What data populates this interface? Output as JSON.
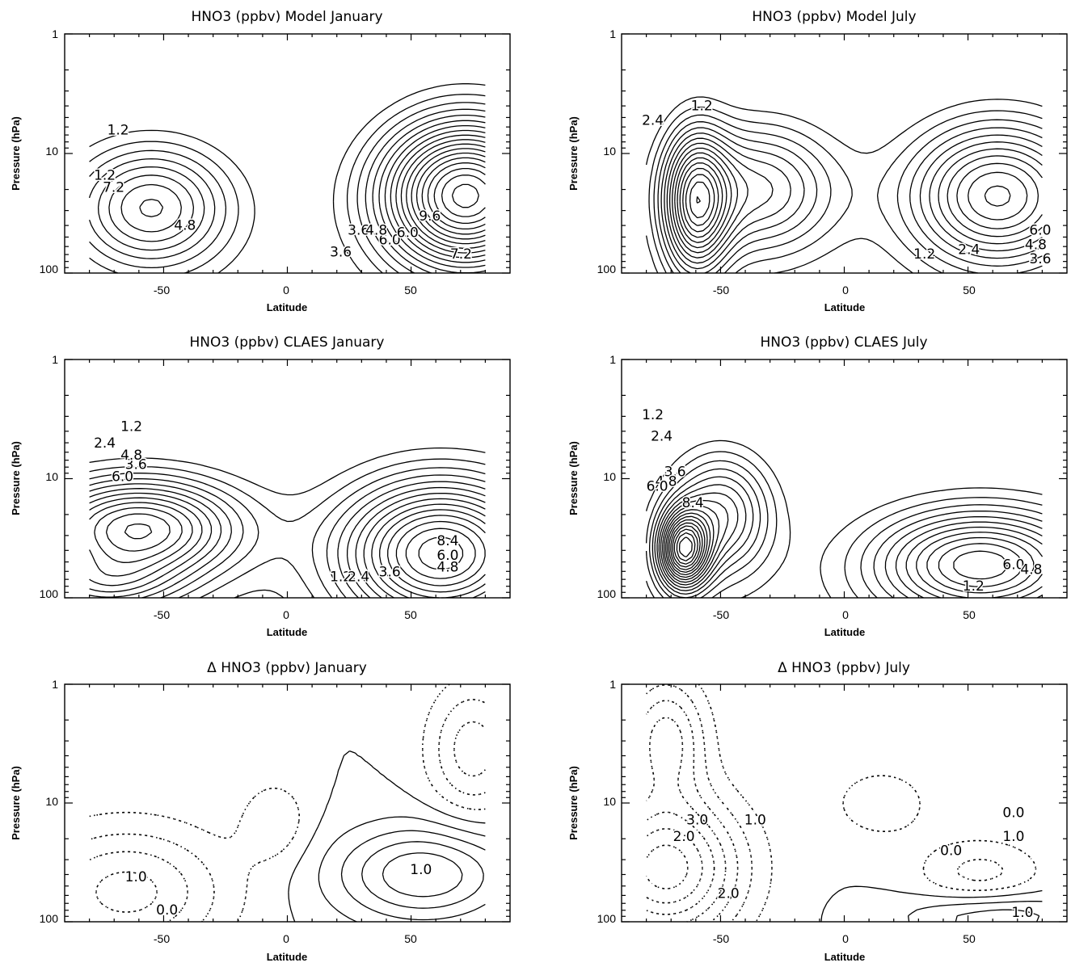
{
  "chart_data": [
    {
      "type": "contour",
      "title": "HNO3 (ppbv)   Model    January",
      "xlabel": "Latitude",
      "ylabel": "Pressure (hPa)",
      "x_ticks": [
        "-50",
        "0",
        "50"
      ],
      "y_ticks": [
        "1",
        "10",
        "100"
      ],
      "xlim": [
        -90,
        90
      ],
      "ylim": [
        100,
        1
      ],
      "y_scale": "log",
      "contour_labels": [
        "1.2",
        "4.8",
        "7.2",
        "3.6",
        "6.0",
        "9.6",
        "1.2",
        "3.6",
        "4.8",
        "6.0",
        "7.2"
      ]
    },
    {
      "type": "contour",
      "title": "HNO3 (ppbv)   Model     July",
      "xlabel": "Latitude",
      "ylabel": "Pressure (hPa)",
      "x_ticks": [
        "-50",
        "0",
        "50"
      ],
      "y_ticks": [
        "1",
        "10",
        "100"
      ],
      "xlim": [
        -90,
        90
      ],
      "ylim": [
        100,
        1
      ],
      "y_scale": "log",
      "contour_labels": [
        "1.2",
        "2.4",
        "6.0",
        "4.8",
        "3.6",
        "1.2",
        "2.4"
      ]
    },
    {
      "type": "contour",
      "title": "HNO3 (ppbv)   CLAES January",
      "xlabel": "Latitude",
      "ylabel": "Pressure (hPa)",
      "x_ticks": [
        "-50",
        "0",
        "50"
      ],
      "y_ticks": [
        "1",
        "10",
        "100"
      ],
      "xlim": [
        -90,
        90
      ],
      "ylim": [
        100,
        1
      ],
      "y_scale": "log",
      "contour_labels": [
        "1.2",
        "2.4",
        "3.6",
        "4.8",
        "6.0",
        "1.2",
        "2.4",
        "3.6",
        "8.4",
        "6.0",
        "4.8"
      ]
    },
    {
      "type": "contour",
      "title": "HNO3 (ppbv)   CLAES July",
      "xlabel": "Latitude",
      "ylabel": "Pressure (hPa)",
      "x_ticks": [
        "-50",
        "0",
        "50"
      ],
      "y_ticks": [
        "1",
        "10",
        "100"
      ],
      "xlim": [
        -90,
        90
      ],
      "ylim": [
        100,
        1
      ],
      "y_scale": "log",
      "contour_labels": [
        "1.2",
        "2.4",
        "3.6",
        "4.8",
        "6.0",
        "8.4",
        "1.2",
        "6.0",
        "4.8"
      ]
    },
    {
      "type": "contour",
      "title": "Δ HNO3 (ppbv) January",
      "xlabel": "Latitude",
      "ylabel": "Pressure (hPa)",
      "x_ticks": [
        "-50",
        "0",
        "50"
      ],
      "y_ticks": [
        "1",
        "10",
        "100"
      ],
      "xlim": [
        -90,
        90
      ],
      "ylim": [
        100,
        1
      ],
      "y_scale": "log",
      "contour_labels": [
        "1.0",
        "0.0",
        "1.0"
      ]
    },
    {
      "type": "contour",
      "title": "Δ HNO3 (ppbv) July",
      "xlabel": "Latitude",
      "ylabel": "Pressure (hPa)",
      "x_ticks": [
        "-50",
        "0",
        "50"
      ],
      "y_ticks": [
        "1",
        "10",
        "100"
      ],
      "xlim": [
        -90,
        90
      ],
      "ylim": [
        100,
        1
      ],
      "y_scale": "log",
      "contour_labels": [
        "3.0",
        "2.0",
        "1.0",
        "0.0",
        "1.0",
        "0.0",
        "2.0",
        "1.0"
      ]
    }
  ],
  "style": {
    "line_color": "#000000",
    "background": "#ffffff"
  }
}
